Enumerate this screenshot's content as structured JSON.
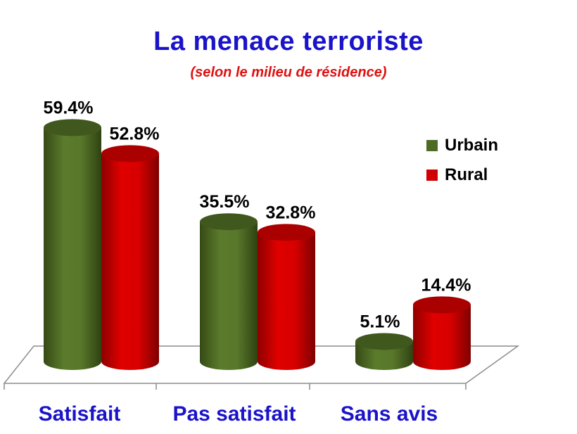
{
  "chart_data": {
    "type": "bar",
    "title": "La  menace terroriste",
    "subtitle": "(selon le milieu de résidence)",
    "categories": [
      "Satisfait",
      "Pas satisfait",
      "Sans avis"
    ],
    "series": [
      {
        "name": "Urbain",
        "values": [
          59.4,
          35.5,
          5.1
        ],
        "labels": [
          "59.4%",
          "35.5%",
          "5.1%"
        ],
        "color": "#4e6b25"
      },
      {
        "name": "Rural",
        "values": [
          52.8,
          32.8,
          14.4
        ],
        "labels": [
          "52.8%",
          "32.8%",
          "14.4%"
        ],
        "color": "#d10000"
      }
    ],
    "legend_position": "top-right",
    "grid": false,
    "style": "3d-cylinder"
  },
  "colors": {
    "title": "#1a13c8",
    "subtitle": "#e01010",
    "category_labels": "#1a13c8"
  }
}
